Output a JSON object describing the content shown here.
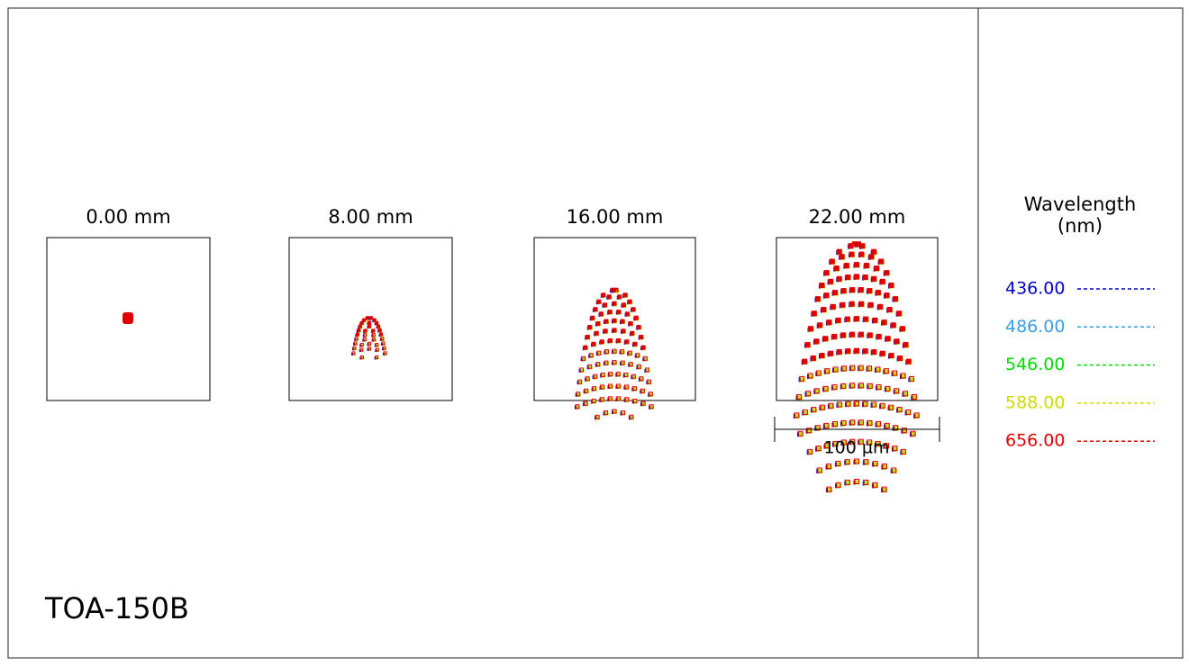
{
  "fields": [
    {
      "label": "0.00 mm"
    },
    {
      "label": "8.00 mm"
    },
    {
      "label": "16.00 mm"
    },
    {
      "label": "22.00 mm"
    }
  ],
  "scale_bar": "100 µm",
  "legend": {
    "title": [
      "Wavelength",
      "(nm)"
    ],
    "entries": [
      {
        "label": "436.00",
        "color": "#0000c8"
      },
      {
        "label": "486.00",
        "color": "#3a9ee6"
      },
      {
        "label": "546.00",
        "color": "#00dc00"
      },
      {
        "label": "588.00",
        "color": "#cfdc00"
      },
      {
        "label": "656.00",
        "color": "#e00000"
      }
    ]
  },
  "footer": "TOA-150B"
}
